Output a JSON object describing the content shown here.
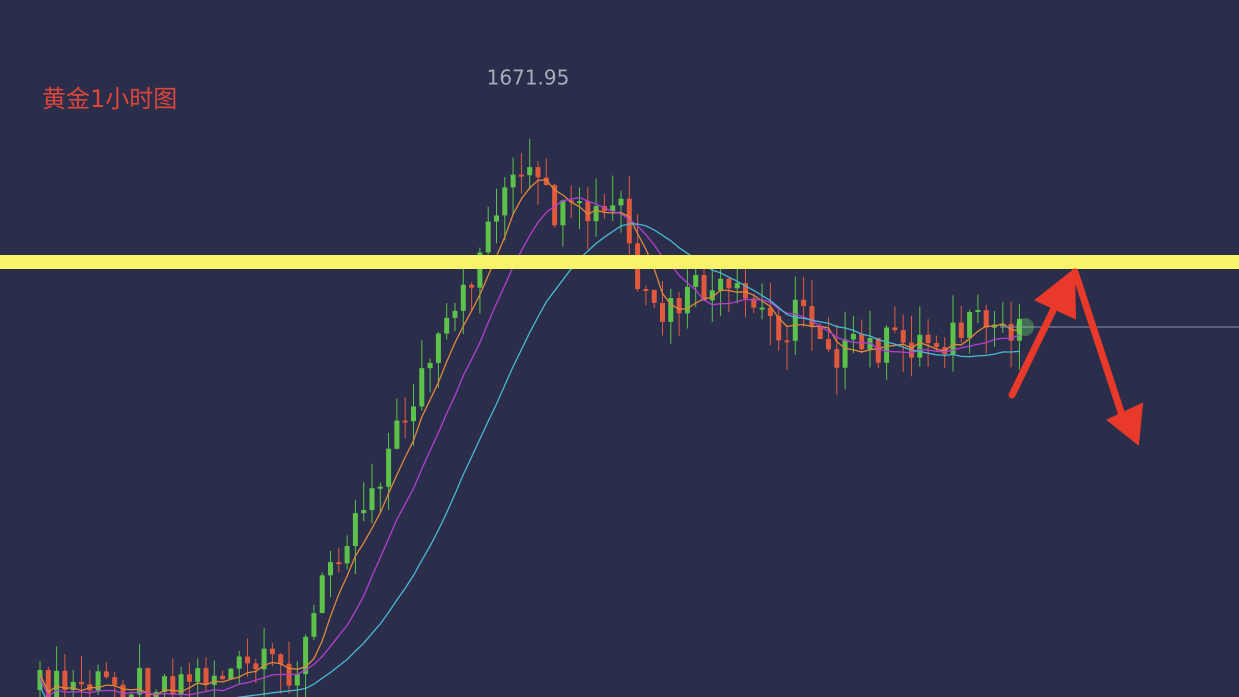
{
  "chart_data": {
    "type": "candlestick",
    "title": "黄金1小时图",
    "annotation": "1671.95"
  }
}
